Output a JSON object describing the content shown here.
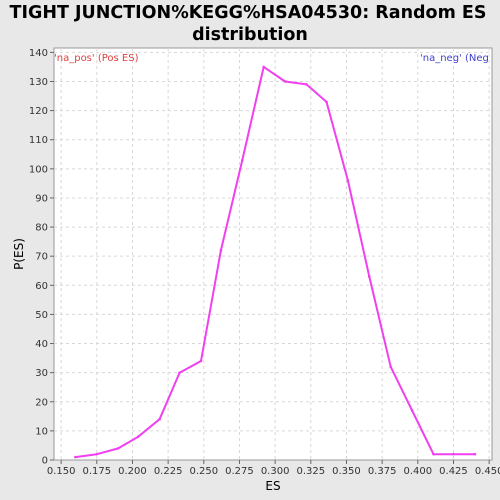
{
  "chart_data": {
    "type": "line",
    "title_line1": "TIGHT JUNCTION%KEGG%HSA04530: Random ES",
    "title_line2": "distribution",
    "xlabel": "ES",
    "ylabel": "P(ES)",
    "xlim": [
      0.145,
      0.452
    ],
    "ylim": [
      0,
      141.5
    ],
    "x_ticks": [
      "0.150",
      "0.175",
      "0.200",
      "0.225",
      "0.250",
      "0.275",
      "0.300",
      "0.325",
      "0.350",
      "0.375",
      "0.400",
      "0.425",
      "0.450"
    ],
    "y_ticks": [
      "0",
      "10",
      "20",
      "30",
      "40",
      "50",
      "60",
      "70",
      "80",
      "90",
      "100",
      "110",
      "120",
      "130",
      "140"
    ],
    "grid": true,
    "corner_left": "'na_pos' (Pos ES)",
    "corner_right": "'na_neg' (Neg ES)",
    "series": [
      {
        "color": "#f040f0",
        "x": [
          0.16,
          0.175,
          0.19,
          0.204,
          0.219,
          0.233,
          0.248,
          0.262,
          0.277,
          0.292,
          0.307,
          0.322,
          0.336,
          0.351,
          0.366,
          0.381,
          0.396,
          0.411,
          0.425,
          0.44
        ],
        "y": [
          1,
          2,
          4,
          8,
          14,
          30,
          34,
          72,
          103,
          135,
          130,
          129,
          123,
          96,
          63,
          32,
          17,
          2,
          2,
          2
        ]
      }
    ],
    "colors": {
      "line": "#f040f0",
      "corner_left": "#e04040",
      "corner_right": "#4040d0",
      "grid": "#d8d8d8"
    }
  }
}
